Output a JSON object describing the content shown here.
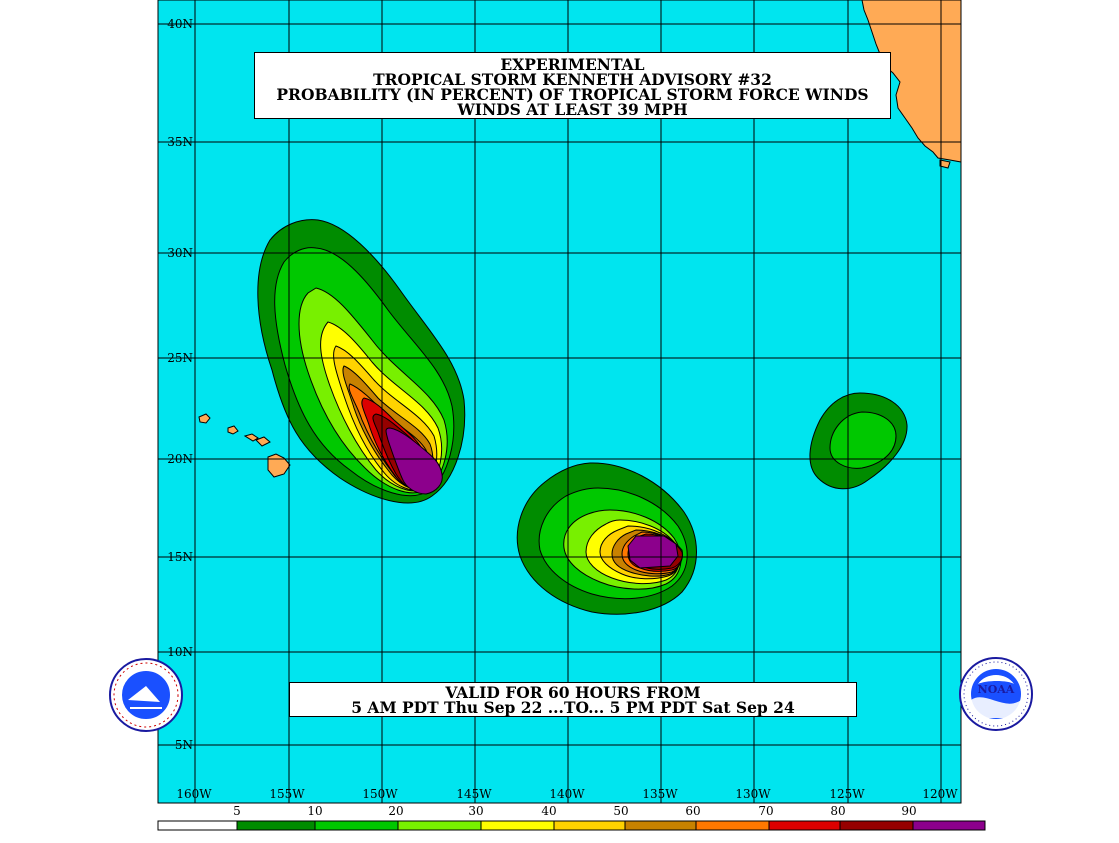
{
  "title": {
    "line1": "EXPERIMENTAL",
    "line2": "TROPICAL STORM KENNETH ADVISORY #32",
    "line3": "PROBABILITY (IN PERCENT) OF TROPICAL STORM FORCE WINDS",
    "line4": "WINDS AT LEAST 39 MPH"
  },
  "valid": {
    "line1": "VALID FOR 60 HOURS FROM",
    "line2": "5 AM PDT Thu Sep 22 ...TO... 5 PM PDT Sat Sep 24"
  },
  "lat_labels": [
    "40N",
    "35N",
    "30N",
    "25N",
    "20N",
    "15N",
    "10N",
    "5N"
  ],
  "lon_labels": [
    "160W",
    "155W",
    "150W",
    "145W",
    "140W",
    "135W",
    "130W",
    "125W",
    "120W"
  ],
  "legend": {
    "values": [
      "5",
      "10",
      "20",
      "30",
      "40",
      "50",
      "60",
      "70",
      "80",
      "90"
    ],
    "colors": [
      "#ffffff",
      "#008c00",
      "#00c800",
      "#78f000",
      "#ffff00",
      "#ffd200",
      "#c88200",
      "#ff7800",
      "#dc0000",
      "#960000",
      "#8c008c"
    ]
  },
  "colors": {
    "ocean": "#00e5ef",
    "land": "#ffaa55"
  },
  "logos": {
    "left": "NATIONAL WEATHER SERVICE",
    "right": "NOAA"
  }
}
